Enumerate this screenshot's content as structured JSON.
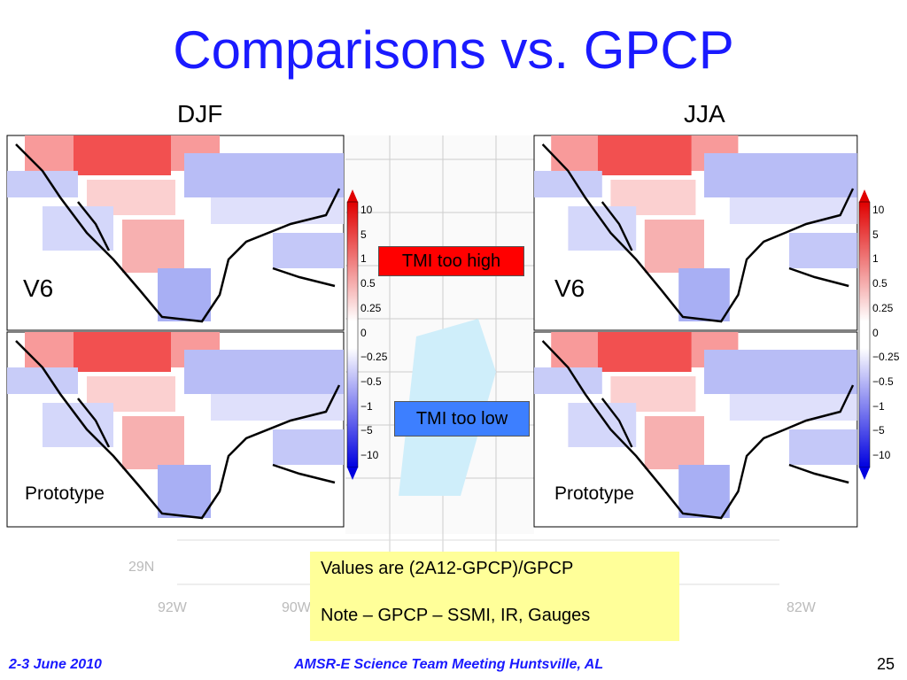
{
  "title": "Comparisons vs. GPCP",
  "panels": {
    "left_header": "DJF",
    "right_header": "JJA",
    "labels": [
      "V6",
      "Prototype",
      "V6",
      "Prototype"
    ]
  },
  "colorbar": [
    "10",
    "5",
    "1",
    "0.5",
    "0.25",
    "0",
    "−0.25",
    "−0.5",
    "−1",
    "−5",
    "−10"
  ],
  "callouts": {
    "high": "TMI too high",
    "low": "TMI too low"
  },
  "background_map_labels": [
    "29N",
    "92W",
    "90W",
    "82W"
  ],
  "note": [
    "Values are (2A12-GPCP)/GPCP",
    "Note – GPCP – SSMI, IR, Gauges"
  ],
  "footer": {
    "date": "2-3 June 2010",
    "meeting": "AMSR-E Science Team Meeting  Huntsville, AL",
    "page": "25"
  }
}
